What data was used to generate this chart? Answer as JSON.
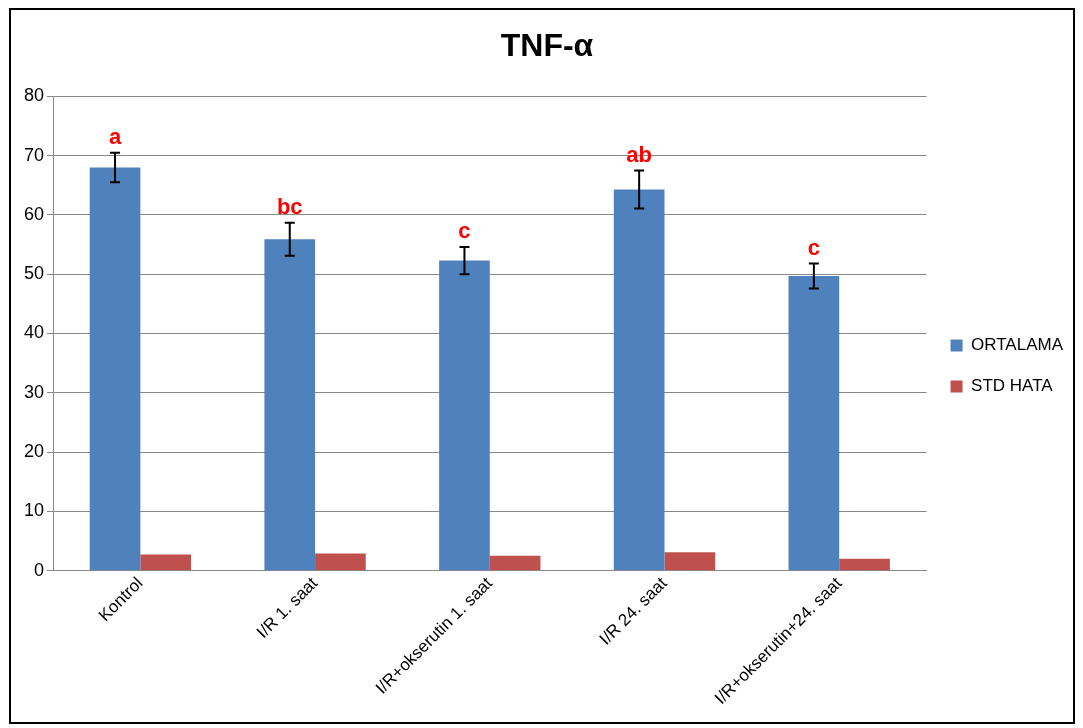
{
  "chart_data": {
    "type": "bar",
    "title": "TNF-α",
    "categories": [
      "Kontrol",
      "I/R 1. saat",
      "I/R+okserutin 1. saat",
      "I/R 24. saat",
      "I/R+okserutin+24. saat"
    ],
    "series": [
      {
        "name": "ORTALAMA",
        "color": "#4f81bd",
        "values": [
          68,
          55.9,
          52.3,
          64.3,
          49.7
        ],
        "errors": [
          2.5,
          2.8,
          2.3,
          3.2,
          2.1
        ]
      },
      {
        "name": "STD HATA",
        "color": "#c0504d",
        "values": [
          2.7,
          2.9,
          2.5,
          3.1,
          2.0
        ]
      }
    ],
    "ylim": [
      0,
      80
    ],
    "yticks": [
      0,
      10,
      20,
      30,
      40,
      50,
      60,
      70,
      80
    ],
    "grid": "y",
    "legend": "right",
    "annotations": [
      {
        "text": "a",
        "x": "Kontrol",
        "y": 68
      },
      {
        "text": "bc",
        "x": "I/R 1. saat",
        "y": 55.9
      },
      {
        "text": "c",
        "x": "I/R+okserutin 1. saat",
        "y": 52.3
      },
      {
        "text": "ab",
        "x": "I/R 24. saat",
        "y": 64.3
      },
      {
        "text": "c",
        "x": "I/R+okserutin+24. saat",
        "y": 49.7
      }
    ]
  }
}
